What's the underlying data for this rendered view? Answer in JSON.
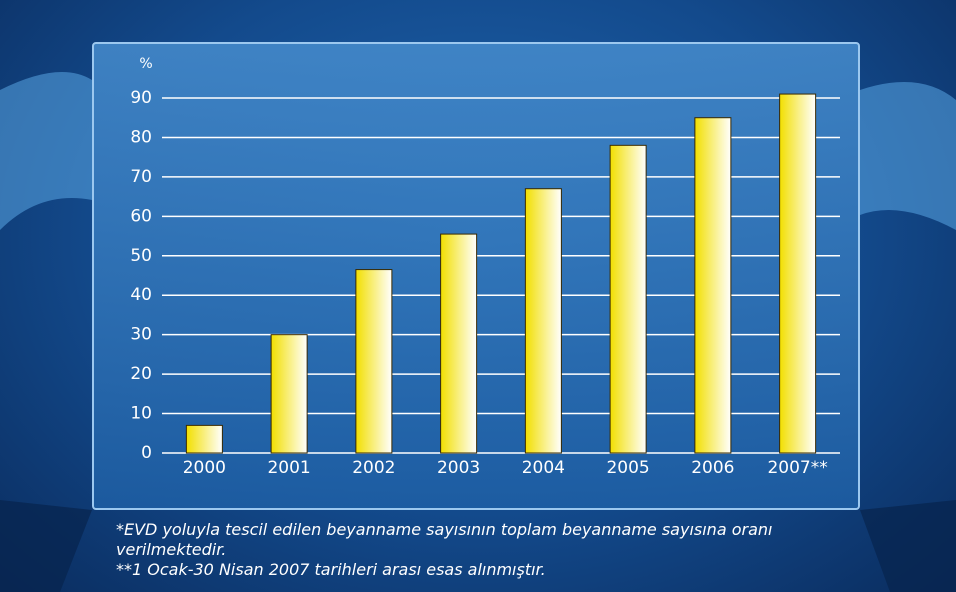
{
  "chart_data": {
    "type": "bar",
    "y_label": "%",
    "categories": [
      "2000",
      "2001",
      "2002",
      "2003",
      "2004",
      "2005",
      "2006",
      "2007**"
    ],
    "values": [
      7,
      30,
      46.5,
      55.5,
      67,
      78,
      85,
      91
    ],
    "color": "#f2df00",
    "ylim": [
      0,
      90
    ],
    "yticks": [
      0,
      10,
      20,
      30,
      40,
      50,
      60,
      70,
      80,
      90
    ],
    "grid": true,
    "notes": [
      "*EVD yoluyla tescil edilen beyanname sayısının toplam beyanname sayısına oranı verilmektedir.",
      "**1 Ocak-30 Nisan 2007 tarihleri arası esas alınmıştır."
    ]
  }
}
